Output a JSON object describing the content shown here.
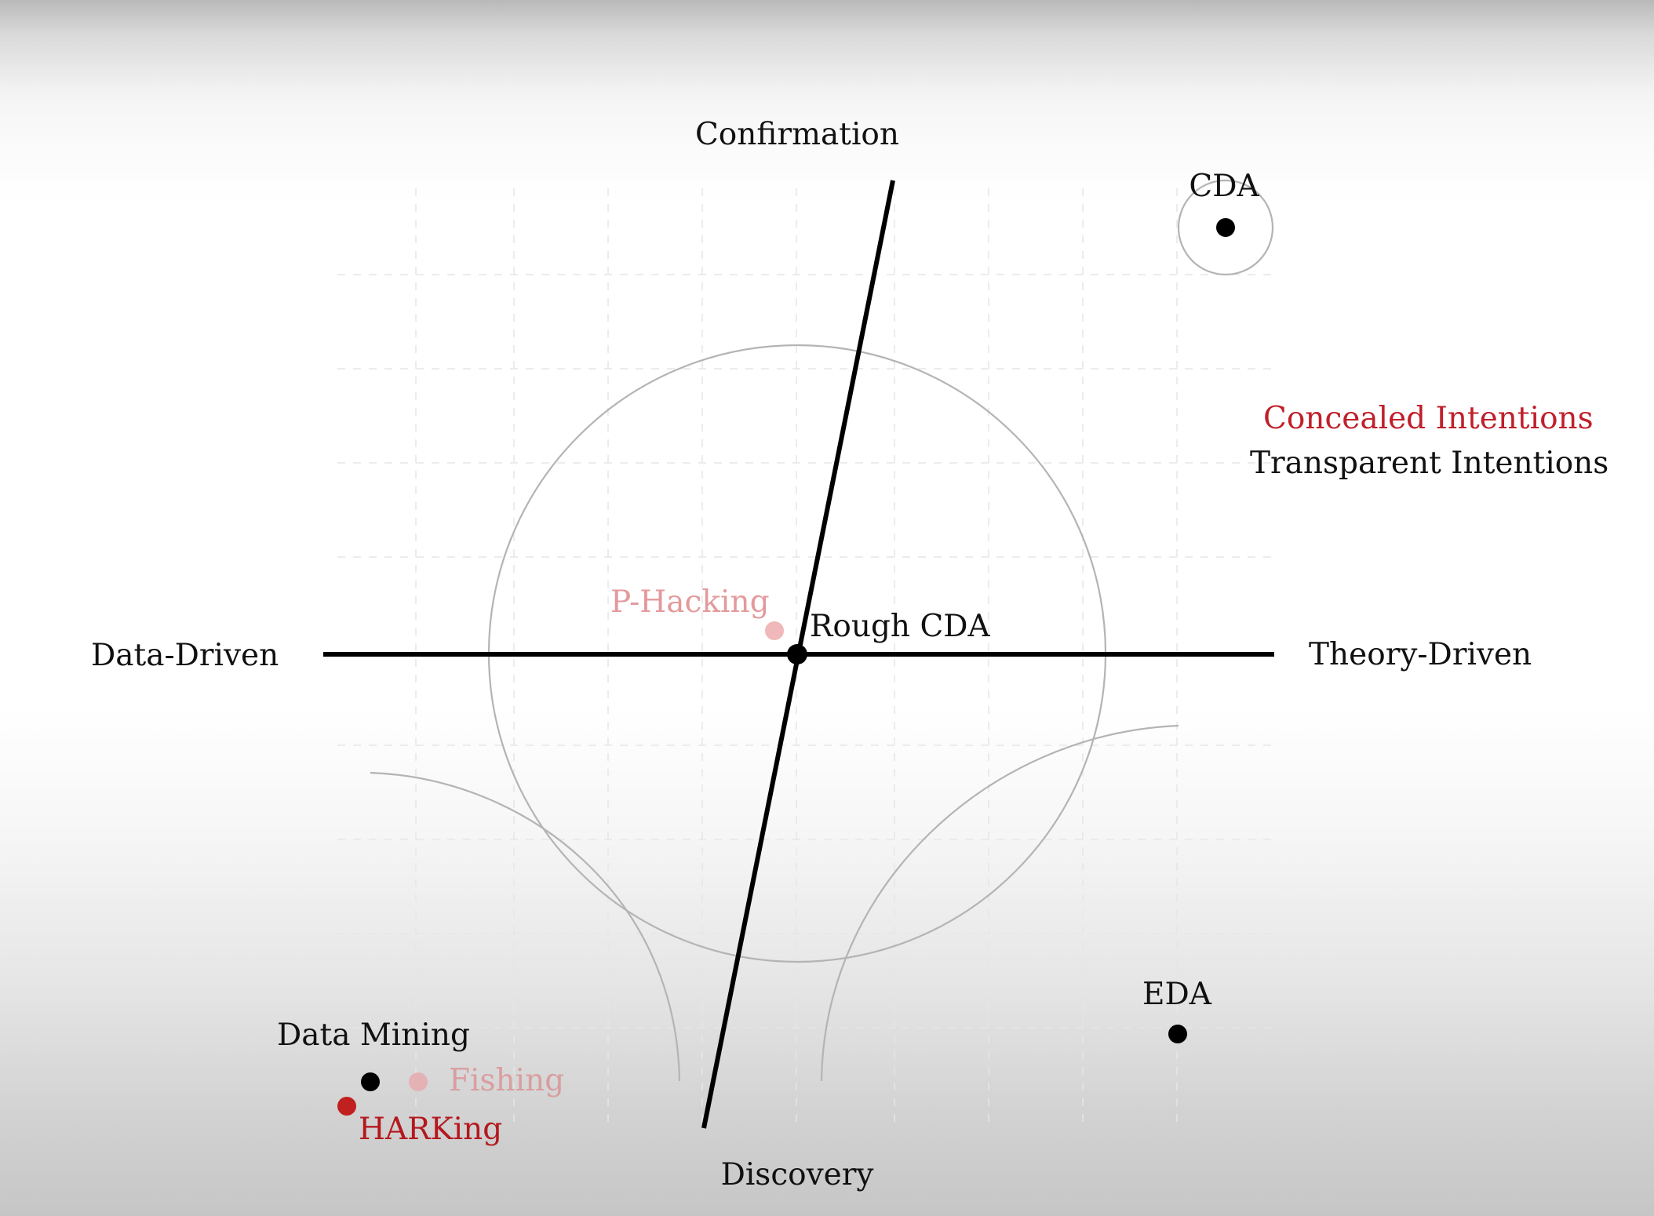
{
  "axes": {
    "top_label": "Confirmation",
    "bottom_label": "Discovery",
    "left_label": "Data-Driven",
    "right_label": "Theory-Driven"
  },
  "legend": {
    "concealed": "Concealed Intentions",
    "transparent": "Transparent Intentions"
  },
  "points": {
    "cda": "CDA",
    "rough_cda": "Rough CDA",
    "p_hacking": "P-Hacking",
    "eda": "EDA",
    "data_mining": "Data Mining",
    "fishing": "Fishing",
    "harking": "HARKing"
  },
  "colors": {
    "concealed": "#c01f2a",
    "transparent": "#111111",
    "p_hacking": "#f0b8ba",
    "fishing": "#e4b2b4",
    "harking": "#c0201e"
  }
}
